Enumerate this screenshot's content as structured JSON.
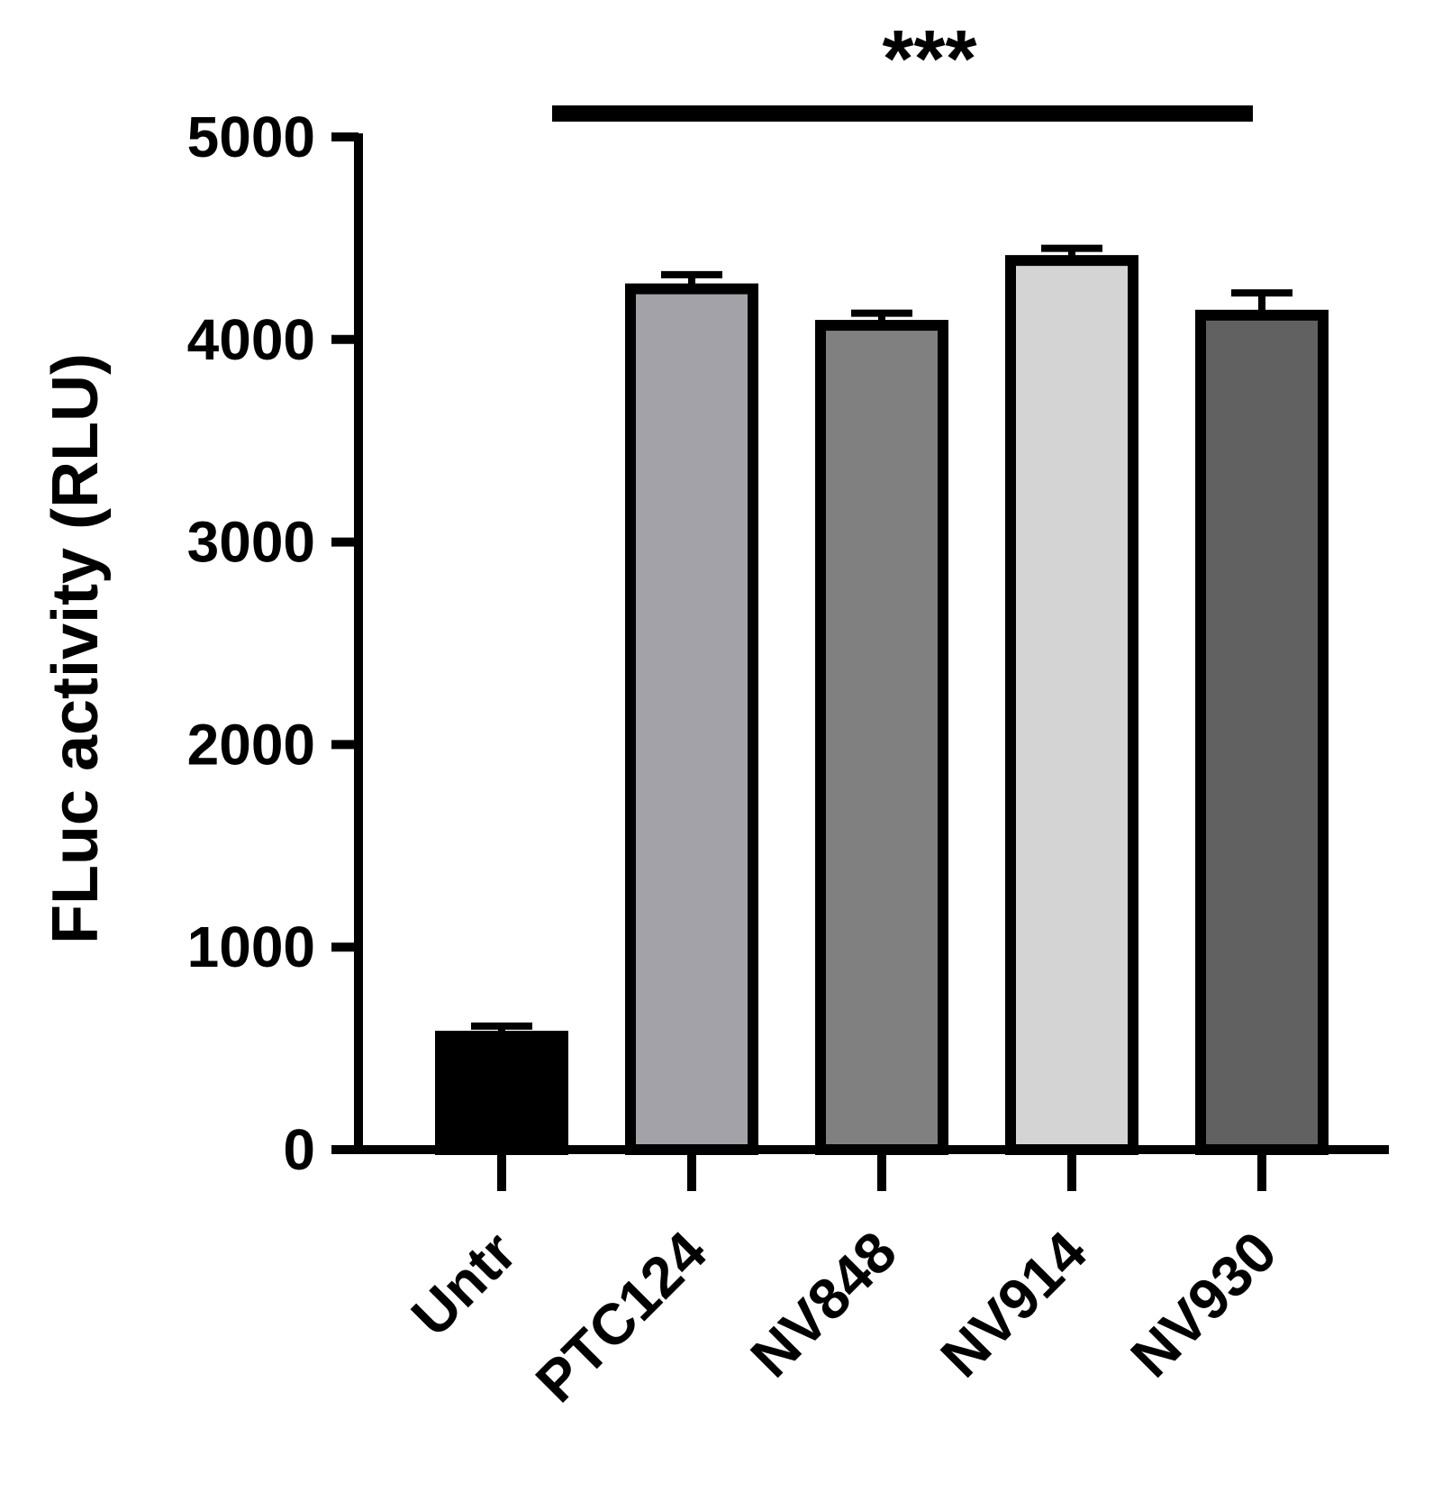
{
  "chart_data": {
    "type": "bar",
    "categories": [
      "Untr",
      "PTC124",
      "NV848",
      "NV914",
      "NV930"
    ],
    "series": [
      {
        "values": [
          560,
          4250,
          4070,
          4390,
          4120
        ],
        "errors": [
          50,
          70,
          60,
          60,
          110
        ],
        "colors": [
          "#000000",
          "#a3a2a8",
          "#808080",
          "#d4d4d4",
          "#616161"
        ]
      }
    ],
    "title": "",
    "xlabel": "",
    "ylabel": "FLuc activity (RLU)",
    "ylim": [
      0,
      5000
    ],
    "yticks": [
      0,
      1000,
      2000,
      3000,
      4000,
      5000
    ],
    "grid": false,
    "legend": "none",
    "annotations": [
      {
        "text": "***",
        "type": "significance-bar",
        "from": "PTC124",
        "to": "NV930"
      }
    ]
  }
}
